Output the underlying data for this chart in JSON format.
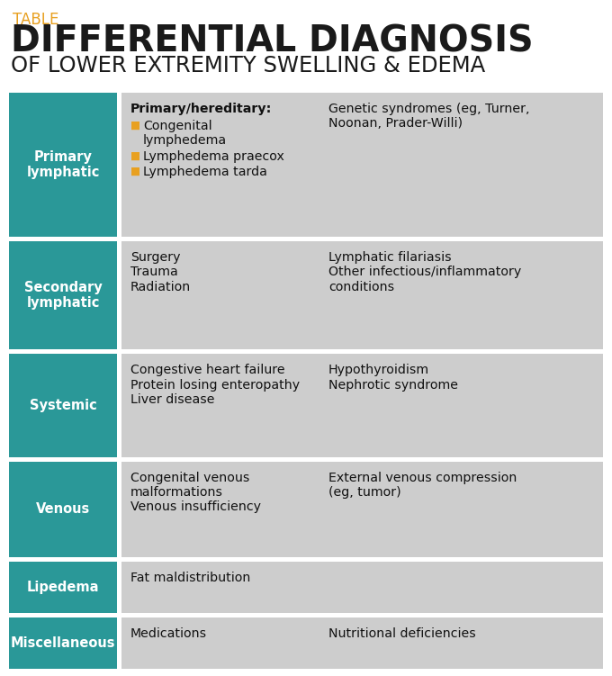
{
  "title_label": "TABLE",
  "title_line1": "DIFFERENTIAL DIAGNOSIS",
  "title_line2": "OF LOWER EXTREMITY SWELLING & EDEMA",
  "title_label_color": "#E8A020",
  "title_color": "#1a1a1a",
  "teal_color": "#2A9898",
  "gray_color": "#CDCDCD",
  "white_color": "#FFFFFF",
  "bullet_color": "#E8A020",
  "rows": [
    {
      "category": "Primary\nlymphatic",
      "col1_bold": "Primary/hereditary:",
      "bullet_items": [
        "Congenital\nlymphedema",
        "Lymphedema praecox",
        "Lymphedema tarda"
      ],
      "col2": "Genetic syndromes (eg, Turner,\nNoonan, Prader-Willi)",
      "has_bullets": true
    },
    {
      "category": "Secondary\nlymphatic",
      "col1": "Surgery\nTrauma\nRadiation",
      "col2": "Lymphatic filariasis\nOther infectious/inflammatory\nconditions",
      "has_bullets": false
    },
    {
      "category": "Systemic",
      "col1": "Congestive heart failure\nProtein losing enteropathy\nLiver disease",
      "col2": "Hypothyroidism\nNephrotic syndrome",
      "has_bullets": false
    },
    {
      "category": "Venous",
      "col1": "Congenital venous\nmalformations\nVenous insufficiency",
      "col2": "External venous compression\n(eg, tumor)",
      "has_bullets": false
    },
    {
      "category": "Lipedema",
      "col1": "Fat maldistribution",
      "col2": "",
      "has_bullets": false
    },
    {
      "category": "Miscellaneous",
      "col1": "Medications",
      "col2": "Nutritional deficiencies",
      "has_bullets": false
    }
  ]
}
